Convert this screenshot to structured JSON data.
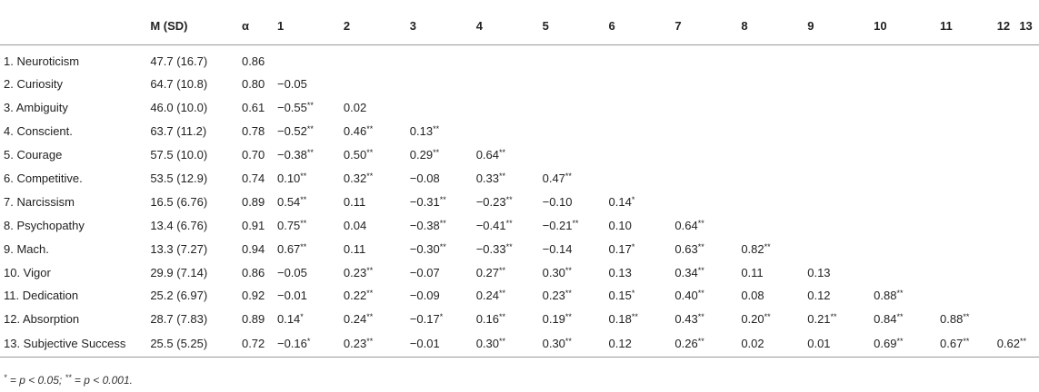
{
  "table": {
    "headers": [
      "",
      "M (SD)",
      "α",
      "1",
      "2",
      "3",
      "4",
      "5",
      "6",
      "7",
      "8",
      "9",
      "10",
      "11",
      "12",
      "13"
    ],
    "rows": [
      {
        "label": "1. Neuroticism",
        "msd": "47.7 (16.7)",
        "alpha": "0.86",
        "cells": []
      },
      {
        "label": "2. Curiosity",
        "msd": "64.7 (10.8)",
        "alpha": "0.80",
        "cells": [
          [
            "−0.05",
            ""
          ]
        ]
      },
      {
        "label": "3. Ambiguity",
        "msd": "46.0 (10.0)",
        "alpha": "0.61",
        "cells": [
          [
            "−0.55",
            "**"
          ],
          [
            "0.02",
            ""
          ]
        ]
      },
      {
        "label": "4. Conscient.",
        "msd": "63.7 (11.2)",
        "alpha": "0.78",
        "cells": [
          [
            "−0.52",
            "**"
          ],
          [
            "0.46",
            "**"
          ],
          [
            "0.13",
            "**"
          ]
        ]
      },
      {
        "label": "5. Courage",
        "msd": "57.5 (10.0)",
        "alpha": "0.70",
        "cells": [
          [
            "−0.38",
            "**"
          ],
          [
            "0.50",
            "**"
          ],
          [
            "0.29",
            "**"
          ],
          [
            "0.64",
            "**"
          ]
        ]
      },
      {
        "label": "6. Competitive.",
        "msd": "53.5 (12.9)",
        "alpha": "0.74",
        "cells": [
          [
            "0.10",
            "**"
          ],
          [
            "0.32",
            "**"
          ],
          [
            "−0.08",
            ""
          ],
          [
            "0.33",
            "**"
          ],
          [
            "0.47",
            "**"
          ]
        ]
      },
      {
        "label": "7. Narcissism",
        "msd": "16.5 (6.76)",
        "alpha": "0.89",
        "cells": [
          [
            "0.54",
            "**"
          ],
          [
            "0.11",
            ""
          ],
          [
            "−0.31",
            "**"
          ],
          [
            "−0.23",
            "**"
          ],
          [
            "−0.10",
            ""
          ],
          [
            "0.14",
            "*"
          ]
        ]
      },
      {
        "label": "8. Psychopathy",
        "msd": "13.4 (6.76)",
        "alpha": "0.91",
        "cells": [
          [
            "0.75",
            "**"
          ],
          [
            "0.04",
            ""
          ],
          [
            "−0.38",
            "**"
          ],
          [
            "−0.41",
            "**"
          ],
          [
            "−0.21",
            "**"
          ],
          [
            "0.10",
            ""
          ],
          [
            "0.64",
            "**"
          ]
        ]
      },
      {
        "label": "9. Mach.",
        "msd": "13.3 (7.27)",
        "alpha": "0.94",
        "cells": [
          [
            "0.67",
            "**"
          ],
          [
            "0.11",
            ""
          ],
          [
            "−0.30",
            "**"
          ],
          [
            "−0.33",
            "**"
          ],
          [
            "−0.14",
            ""
          ],
          [
            "0.17",
            "*"
          ],
          [
            "0.63",
            "**"
          ],
          [
            "0.82",
            "**"
          ]
        ]
      },
      {
        "label": "10. Vigor",
        "msd": "29.9 (7.14)",
        "alpha": "0.86",
        "cells": [
          [
            "−0.05",
            ""
          ],
          [
            "0.23",
            "**"
          ],
          [
            "−0.07",
            ""
          ],
          [
            "0.27",
            "**"
          ],
          [
            "0.30",
            "**"
          ],
          [
            "0.13",
            ""
          ],
          [
            "0.34",
            "**"
          ],
          [
            "0.11",
            ""
          ],
          [
            "0.13",
            ""
          ]
        ]
      },
      {
        "label": "11. Dedication",
        "msd": "25.2 (6.97)",
        "alpha": "0.92",
        "cells": [
          [
            "−0.01",
            ""
          ],
          [
            "0.22",
            "**"
          ],
          [
            "−0.09",
            ""
          ],
          [
            "0.24",
            "**"
          ],
          [
            "0.23",
            "**"
          ],
          [
            "0.15",
            "*"
          ],
          [
            "0.40",
            "**"
          ],
          [
            "0.08",
            ""
          ],
          [
            "0.12",
            ""
          ],
          [
            "0.88",
            "**"
          ]
        ]
      },
      {
        "label": "12. Absorption",
        "msd": "28.7 (7.83)",
        "alpha": "0.89",
        "cells": [
          [
            "0.14",
            "*"
          ],
          [
            "0.24",
            "**"
          ],
          [
            "−0.17",
            "*"
          ],
          [
            "0.16",
            "**"
          ],
          [
            "0.19",
            "**"
          ],
          [
            "0.18",
            "**"
          ],
          [
            "0.43",
            "**"
          ],
          [
            "0.20",
            "**"
          ],
          [
            "0.21",
            "**"
          ],
          [
            "0.84",
            "**"
          ],
          [
            "0.88",
            "**"
          ]
        ]
      },
      {
        "label": "13. Subjective Success",
        "msd": "25.5 (5.25)",
        "alpha": "0.72",
        "cells": [
          [
            "−0.16",
            "*"
          ],
          [
            "0.23",
            "**"
          ],
          [
            "−0.01",
            ""
          ],
          [
            "0.30",
            "**"
          ],
          [
            "0.30",
            "**"
          ],
          [
            "0.12",
            ""
          ],
          [
            "0.26",
            "**"
          ],
          [
            "0.02",
            ""
          ],
          [
            "0.01",
            ""
          ],
          [
            "0.69",
            "**"
          ],
          [
            "0.67",
            "**"
          ],
          [
            "0.62",
            "**"
          ]
        ]
      }
    ]
  },
  "note": {
    "p1_star": "*",
    "p1_text": " = p < 0.05; ",
    "p2_star": "**",
    "p2_text": " = p < 0.001."
  }
}
